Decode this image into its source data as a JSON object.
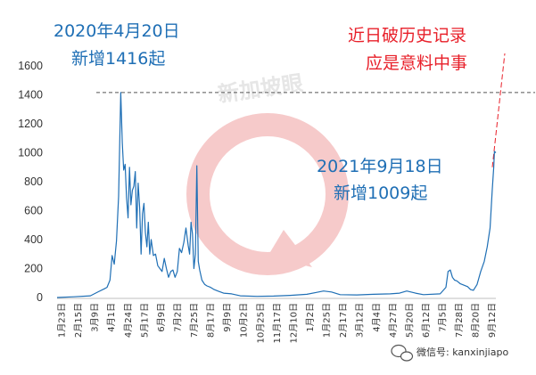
{
  "chart_data": {
    "type": "line",
    "color": "#1f6fb5",
    "ylim": [
      0,
      1600
    ],
    "yticks": [
      0,
      200,
      400,
      600,
      800,
      1000,
      1200,
      1400,
      1600
    ],
    "xtick_labels": [
      "1月23日",
      "2月15日",
      "3月9日",
      "4月1日",
      "4月24日",
      "5月17日",
      "6月9日",
      "7月2日",
      "7月25日",
      "8月17日",
      "9月9日",
      "10月2日",
      "10月25日",
      "11月17日",
      "12月10日",
      "1月2日",
      "1月25日",
      "2月17日",
      "3月12日",
      "4月4日",
      "4月27日",
      "5月20日",
      "6月12日",
      "7月5日",
      "7月28日",
      "8月20日",
      "9月12日"
    ],
    "x_range": [
      "2020-01-23",
      "2021-09-20"
    ],
    "series": [
      {
        "points": [
          [
            "2020-01-23",
            0
          ],
          [
            "2020-02-15",
            5
          ],
          [
            "2020-03-09",
            12
          ],
          [
            "2020-03-20",
            40
          ],
          [
            "2020-03-28",
            60
          ],
          [
            "2020-04-01",
            70
          ],
          [
            "2020-04-05",
            120
          ],
          [
            "2020-04-08",
            290
          ],
          [
            "2020-04-11",
            230
          ],
          [
            "2020-04-14",
            390
          ],
          [
            "2020-04-17",
            700
          ],
          [
            "2020-04-20",
            1416
          ],
          [
            "2020-04-22",
            1070
          ],
          [
            "2020-04-24",
            880
          ],
          [
            "2020-04-26",
            920
          ],
          [
            "2020-04-28",
            690
          ],
          [
            "2020-04-30",
            550
          ],
          [
            "2020-05-02",
            900
          ],
          [
            "2020-05-04",
            640
          ],
          [
            "2020-05-06",
            740
          ],
          [
            "2020-05-08",
            770
          ],
          [
            "2020-05-10",
            870
          ],
          [
            "2020-05-12",
            480
          ],
          [
            "2020-05-14",
            790
          ],
          [
            "2020-05-16",
            620
          ],
          [
            "2020-05-18",
            300
          ],
          [
            "2020-05-20",
            580
          ],
          [
            "2020-05-22",
            650
          ],
          [
            "2020-05-24",
            450
          ],
          [
            "2020-05-26",
            350
          ],
          [
            "2020-05-28",
            520
          ],
          [
            "2020-05-30",
            300
          ],
          [
            "2020-06-01",
            400
          ],
          [
            "2020-06-04",
            290
          ],
          [
            "2020-06-07",
            300
          ],
          [
            "2020-06-10",
            220
          ],
          [
            "2020-06-13",
            200
          ],
          [
            "2020-06-16",
            180
          ],
          [
            "2020-06-19",
            270
          ],
          [
            "2020-06-22",
            200
          ],
          [
            "2020-06-25",
            140
          ],
          [
            "2020-06-28",
            180
          ],
          [
            "2020-07-01",
            190
          ],
          [
            "2020-07-04",
            140
          ],
          [
            "2020-07-07",
            180
          ],
          [
            "2020-07-10",
            340
          ],
          [
            "2020-07-13",
            310
          ],
          [
            "2020-07-16",
            380
          ],
          [
            "2020-07-19",
            480
          ],
          [
            "2020-07-22",
            360
          ],
          [
            "2020-07-24",
            300
          ],
          [
            "2020-07-26",
            520
          ],
          [
            "2020-07-28",
            440
          ],
          [
            "2020-07-30",
            200
          ],
          [
            "2020-08-01",
            300
          ],
          [
            "2020-08-03",
            910
          ],
          [
            "2020-08-05",
            250
          ],
          [
            "2020-08-07",
            190
          ],
          [
            "2020-08-10",
            120
          ],
          [
            "2020-08-14",
            90
          ],
          [
            "2020-08-17",
            80
          ],
          [
            "2020-08-22",
            70
          ],
          [
            "2020-08-27",
            55
          ],
          [
            "2020-09-01",
            45
          ],
          [
            "2020-09-09",
            30
          ],
          [
            "2020-09-20",
            25
          ],
          [
            "2020-10-02",
            12
          ],
          [
            "2020-10-25",
            8
          ],
          [
            "2020-11-17",
            10
          ],
          [
            "2020-12-10",
            15
          ],
          [
            "2021-01-02",
            22
          ],
          [
            "2021-01-15",
            35
          ],
          [
            "2021-01-25",
            45
          ],
          [
            "2021-02-05",
            38
          ],
          [
            "2021-02-17",
            20
          ],
          [
            "2021-03-12",
            18
          ],
          [
            "2021-04-04",
            22
          ],
          [
            "2021-04-27",
            25
          ],
          [
            "2021-05-10",
            30
          ],
          [
            "2021-05-20",
            45
          ],
          [
            "2021-06-01",
            30
          ],
          [
            "2021-06-12",
            20
          ],
          [
            "2021-07-05",
            25
          ],
          [
            "2021-07-13",
            70
          ],
          [
            "2021-07-16",
            180
          ],
          [
            "2021-07-19",
            190
          ],
          [
            "2021-07-22",
            140
          ],
          [
            "2021-07-25",
            120
          ],
          [
            "2021-07-28",
            115
          ],
          [
            "2021-08-02",
            95
          ],
          [
            "2021-08-07",
            85
          ],
          [
            "2021-08-12",
            75
          ],
          [
            "2021-08-16",
            55
          ],
          [
            "2021-08-20",
            50
          ],
          [
            "2021-08-25",
            90
          ],
          [
            "2021-08-30",
            180
          ],
          [
            "2021-09-04",
            250
          ],
          [
            "2021-09-08",
            350
          ],
          [
            "2021-09-12",
            480
          ],
          [
            "2021-09-15",
            740
          ],
          [
            "2021-09-17",
            900
          ],
          [
            "2021-09-18",
            1009
          ],
          [
            "2021-09-20",
            1000
          ]
        ]
      }
    ],
    "reference_line": {
      "value": 1416,
      "style": "dashed"
    },
    "annotations": [
      {
        "lines": [
          "2020年4月20日",
          "新增1416起"
        ],
        "color": "#1f6fb5"
      },
      {
        "lines": [
          "2021年9月18日",
          "新增1009起"
        ],
        "color": "#1f6fb5"
      },
      {
        "lines": [
          "近日破历史记录",
          "应是意料中事"
        ],
        "color": "#e8202a"
      }
    ]
  },
  "watermark": {
    "text": "新加坡眼"
  },
  "credit": {
    "text": "微信号: kanxinjiapo",
    "icon": "wechat-icon"
  }
}
